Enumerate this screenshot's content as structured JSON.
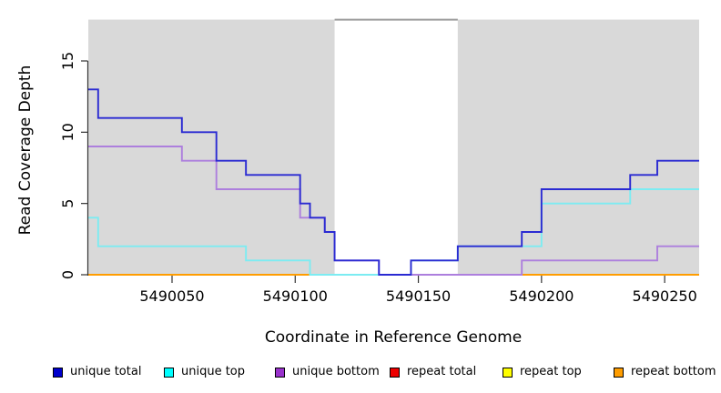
{
  "chart_data": {
    "type": "line",
    "subtype": "step-coverage",
    "title": "",
    "xlabel": "Coordinate in Reference Genome",
    "ylabel": "Read Coverage Depth",
    "xlim": [
      5490016,
      5490264
    ],
    "ylim": [
      0,
      17.9
    ],
    "grid": "off",
    "xticks": [
      5490050,
      5490100,
      5490150,
      5490200,
      5490250
    ],
    "xtick_labels": [
      "5490050",
      "5490100",
      "5490150",
      "5490200",
      "5490250"
    ],
    "yticks": [
      0,
      5,
      10,
      15
    ],
    "ytick_labels": [
      "0",
      "5",
      "10",
      "15"
    ],
    "background_regions": [
      {
        "name": "shaded-region-left",
        "x0": 5490016,
        "x1": 5490116,
        "color": "#d9d9d9"
      },
      {
        "name": "shaded-region-right",
        "x0": 5490166,
        "x1": 5490264,
        "color": "#d9d9d9"
      }
    ],
    "gap_region": {
      "x0": 5490116,
      "x1": 5490166,
      "color": "#ffffff"
    },
    "top_boundary_line": {
      "x0": 5490116,
      "x1": 5490166,
      "y": 17.9,
      "color": "#9c9c9c"
    },
    "series": [
      {
        "name": "repeat top",
        "line_color": "#97d897",
        "segments": [
          [
            [
              5490106,
              0
            ],
            [
              5490134,
              0
            ]
          ]
        ]
      },
      {
        "name": "repeat total",
        "line_color": "#d14a6c",
        "segments": [
          [
            [
              5490147,
              0
            ],
            [
              5490192,
              0
            ]
          ]
        ]
      },
      {
        "name": "repeat bottom",
        "line_color": "#ff9d00",
        "segments": [
          [
            [
              5490016,
              0
            ],
            [
              5490106,
              0
            ]
          ],
          [
            [
              5490192,
              0
            ],
            [
              5490264,
              0
            ]
          ]
        ]
      },
      {
        "name": "unique bottom",
        "line_color": "#ad7fdd",
        "segments": [
          [
            [
              5490016,
              9
            ],
            [
              5490054,
              8
            ],
            [
              5490068,
              6
            ],
            [
              5490102,
              4
            ],
            [
              5490112,
              3
            ],
            [
              5490116,
              1
            ],
            [
              5490134,
              0
            ],
            [
              5490192,
              1
            ],
            [
              5490247,
              2
            ],
            [
              5490264,
              2
            ]
          ]
        ]
      },
      {
        "name": "unique top",
        "line_color": "#7cecf2",
        "segments": [
          [
            [
              5490016,
              4
            ],
            [
              5490020,
              2
            ],
            [
              5490080,
              1
            ],
            [
              5490106,
              0
            ],
            [
              5490147,
              1
            ],
            [
              5490166,
              2
            ],
            [
              5490200,
              5
            ],
            [
              5490236,
              6
            ],
            [
              5490264,
              6
            ]
          ]
        ]
      },
      {
        "name": "unique total",
        "line_color": "#2a2ad2",
        "segments": [
          [
            [
              5490016,
              13
            ],
            [
              5490020,
              11
            ],
            [
              5490054,
              10
            ],
            [
              5490068,
              8
            ],
            [
              5490080,
              7
            ],
            [
              5490102,
              5
            ],
            [
              5490106,
              4
            ],
            [
              5490112,
              3
            ],
            [
              5490116,
              1
            ],
            [
              5490134,
              0
            ],
            [
              5490147,
              1
            ],
            [
              5490166,
              2
            ],
            [
              5490192,
              3
            ],
            [
              5490200,
              6
            ],
            [
              5490236,
              7
            ],
            [
              5490247,
              8
            ],
            [
              5490264,
              8
            ]
          ]
        ]
      }
    ],
    "legend_position": "bottom"
  },
  "axes": {
    "x_title": "Coordinate in Reference Genome",
    "y_title": "Read Coverage Depth"
  },
  "legend": {
    "items": [
      {
        "label": "unique total",
        "color": "#0000cd"
      },
      {
        "label": "unique top",
        "color": "#00ffff"
      },
      {
        "label": "unique bottom",
        "color": "#9932cc"
      },
      {
        "label": "repeat total",
        "color": "#ee0000"
      },
      {
        "label": "repeat top",
        "color": "#ffff00"
      },
      {
        "label": "repeat bottom",
        "color": "#ff9d00"
      }
    ]
  }
}
